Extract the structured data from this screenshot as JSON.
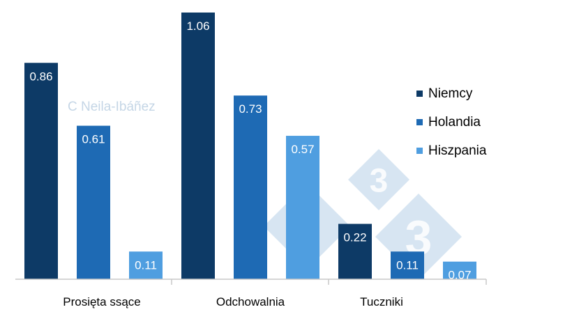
{
  "watermark": {
    "credit": "C Neila-Ibáñez",
    "logo_text": "333"
  },
  "colors": {
    "Niemcy": "#0d3a66",
    "Holandia": "#1e6ab4",
    "Hiszpania": "#4f9ee0",
    "axis": "#c8c8c8",
    "watermark": "#c9dcee"
  },
  "chart_data": {
    "type": "bar",
    "title": "",
    "xlabel": "",
    "ylabel": "",
    "categories": [
      "Prosięta ssące",
      "Odchowalnia",
      "Tuczniki"
    ],
    "series": [
      {
        "name": "Niemcy",
        "values": [
          0.86,
          1.06,
          0.22
        ]
      },
      {
        "name": "Holandia",
        "values": [
          0.61,
          0.73,
          0.11
        ]
      },
      {
        "name": "Hiszpania",
        "values": [
          0.11,
          0.57,
          0.07
        ]
      }
    ],
    "value_labels": [
      [
        "0.86",
        "1.06",
        "0.22"
      ],
      [
        "0.61",
        "0.73",
        "0.11"
      ],
      [
        "0.11",
        "0.57",
        "0.07"
      ]
    ],
    "ylim": [
      0,
      1.06
    ],
    "grid": false,
    "legend_position": "right"
  }
}
